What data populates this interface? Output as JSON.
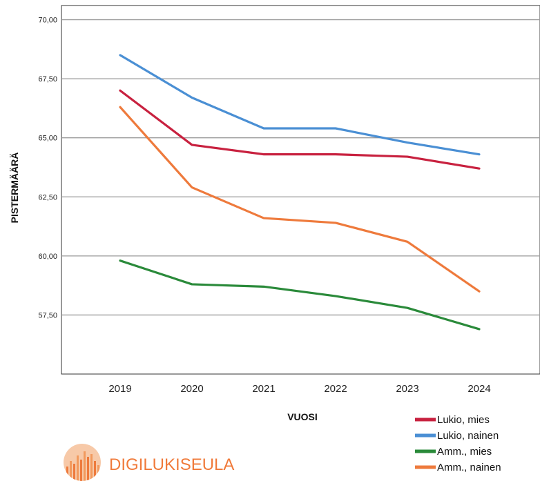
{
  "chart_data": {
    "type": "line",
    "title": "",
    "xlabel": "VUOSI",
    "ylabel": "PISTERMÄÄRÄ",
    "categories": [
      "2019",
      "2020",
      "2021",
      "2022",
      "2023",
      "2024"
    ],
    "ylim": [
      55.0,
      70.6
    ],
    "yticks": [
      "70,00",
      "67,50",
      "65,00",
      "62,50",
      "60,00",
      "57,50"
    ],
    "ytick_values": [
      70.0,
      67.5,
      65.0,
      62.5,
      60.0,
      57.5
    ],
    "grid": true,
    "legend_position": "bottom-right",
    "series": [
      {
        "name": "Lukio, mies",
        "color": "#c8213f",
        "values": [
          67.0,
          64.7,
          64.3,
          64.3,
          64.2,
          63.7
        ]
      },
      {
        "name": "Lukio, nainen",
        "color": "#4a8fd4",
        "values": [
          68.5,
          66.7,
          65.4,
          65.4,
          64.8,
          64.3
        ]
      },
      {
        "name": "Amm., mies",
        "color": "#2a8a3a",
        "values": [
          59.8,
          58.8,
          58.7,
          58.3,
          57.8,
          56.9
        ]
      },
      {
        "name": "Amm., nainen",
        "color": "#ee7a3c",
        "values": [
          66.3,
          62.9,
          61.6,
          61.4,
          60.6,
          58.5
        ]
      }
    ]
  },
  "logo": {
    "text": "DIGILUKISEULA",
    "color": "#f07a3a",
    "icon": "bar-chart-circle-icon"
  }
}
